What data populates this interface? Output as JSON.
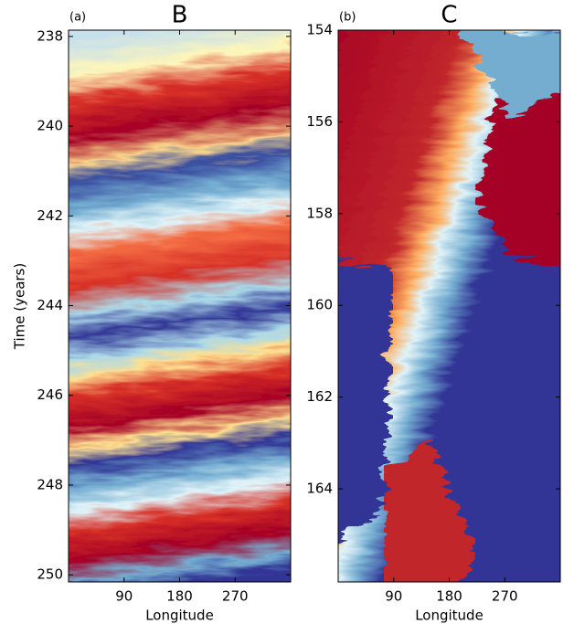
{
  "chart_data": [
    {
      "type": "heatmap",
      "panel_label": "(a)",
      "title": "B",
      "ylabel": "Time (years)",
      "xlabel": "Longitude",
      "xlim": [
        0,
        360
      ],
      "xticks": [
        90,
        180,
        270
      ],
      "ylim": [
        237.86,
        250.16
      ],
      "yticks": [
        238,
        240,
        242,
        244,
        246,
        248,
        250
      ],
      "y_inverted": true
    },
    {
      "type": "heatmap",
      "panel_label": "(b)",
      "title": "C",
      "xlabel": "Longitude",
      "xlim": [
        0,
        360
      ],
      "xticks": [
        90,
        180,
        270
      ],
      "ylim": [
        154,
        166.03
      ],
      "yticks": [
        154,
        156,
        158,
        160,
        162,
        164
      ],
      "y_inverted": true
    }
  ]
}
